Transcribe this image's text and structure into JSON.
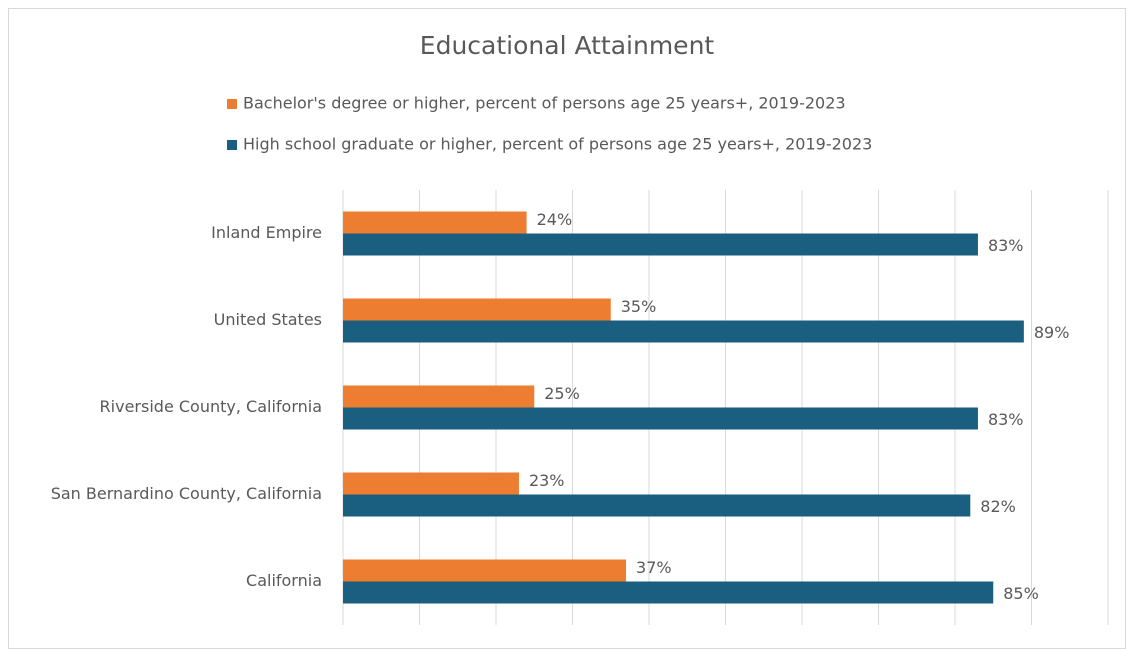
{
  "chart_data": {
    "type": "hbar",
    "title": "Educational Attainment",
    "categories": [
      "Inland Empire",
      "United States",
      "Riverside County, California",
      "San Bernardino County, California",
      "California"
    ],
    "series": [
      {
        "name": "Bachelor's degree or higher, percent of persons age 25 years+, 2019-2023",
        "color": "#ed7d31",
        "values": [
          24,
          35,
          25,
          23,
          37
        ],
        "value_labels": [
          "24%",
          "35%",
          "25%",
          "23%",
          "37%"
        ]
      },
      {
        "name": "High school graduate or higher, percent of persons age 25 years+, 2019-2023",
        "color": "#1a5e80",
        "values": [
          83,
          89,
          83,
          82,
          85
        ],
        "value_labels": [
          "83%",
          "89%",
          "83%",
          "82%",
          "85%"
        ]
      }
    ],
    "xlim": [
      0,
      100
    ],
    "xticks": [
      0,
      10,
      20,
      30,
      40,
      50,
      60,
      70,
      80,
      90,
      100
    ],
    "grid": true,
    "legend": "top"
  }
}
